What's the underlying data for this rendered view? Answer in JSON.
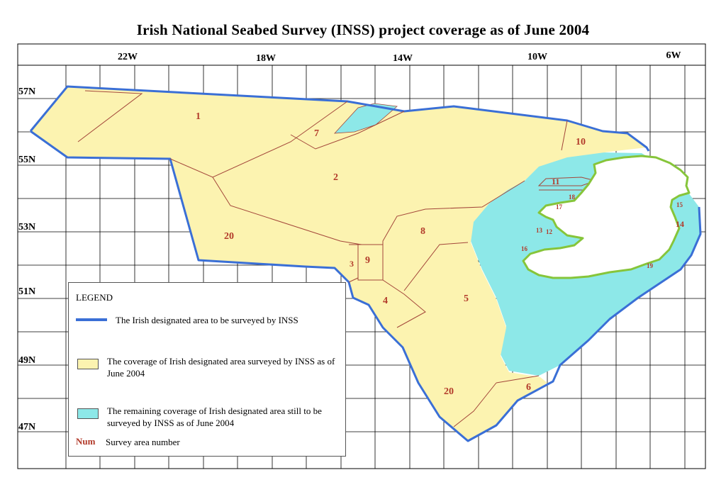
{
  "title": "Irish National Seabed Survey (INSS) project coverage as of June 2004",
  "longitude_labels": [
    "22W",
    "18W",
    "14W",
    "10W",
    "6W"
  ],
  "latitude_labels": [
    "57N",
    "55N",
    "53N",
    "51N",
    "49N",
    "47N"
  ],
  "survey_area_numbers": [
    "1",
    "2",
    "3",
    "4",
    "5",
    "6",
    "7",
    "8",
    "9",
    "10",
    "11",
    "12",
    "13",
    "14",
    "15",
    "16",
    "17",
    "18",
    "19",
    "20",
    "20"
  ],
  "colors": {
    "surveyed": "#fcf3b0",
    "remaining": "#8de8e8",
    "boundary": "#3a6fd6",
    "coast": "#86c53a",
    "area_lines": "#a3463a",
    "grid": "#000000"
  },
  "legend": {
    "title": "LEGEND",
    "boundary_label": "The Irish designated area to be surveyed by INSS",
    "surveyed_label": "The coverage of Irish designated area surveyed by INSS as of June 2004",
    "remaining_label": "The remaining coverage of Irish designated area still to be surveyed by INSS as of June 2004",
    "num_key": "Num",
    "num_label": "Survey area number"
  }
}
